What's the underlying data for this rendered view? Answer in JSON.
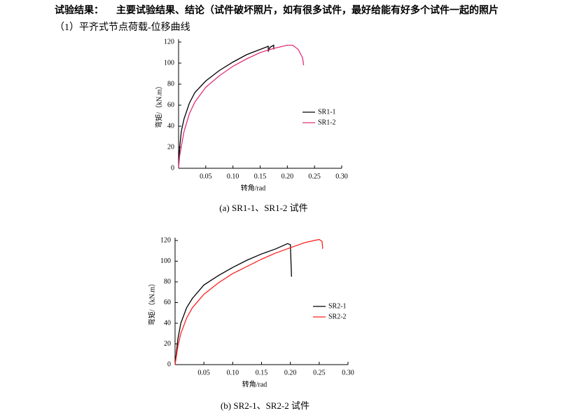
{
  "header": {
    "label": "试验结果：",
    "text": "主要试验结果、结论（试件破坏照片，如有很多试件，最好给能有好多个试件一起的照片"
  },
  "section": "（1）平齐式节点荷载-位移曲线",
  "chart_data": [
    {
      "type": "line",
      "caption": "(a) SR1-1、SR1-2 试件",
      "x_label": "转角/rad",
      "y_label": "弯矩/（kN.m）",
      "xlim": [
        0,
        0.3
      ],
      "ylim": [
        0,
        120
      ],
      "xticks": [
        0.05,
        {
          "value": 0.1,
          "label": "0.10"
        },
        0.15,
        {
          "value": 0.2,
          "label": "0.20"
        },
        0.25,
        {
          "value": 0.3,
          "label": "0.30"
        }
      ],
      "yticks": [
        0,
        20,
        40,
        60,
        80,
        100,
        120
      ],
      "series": [
        {
          "name": "SR1-1",
          "color": "#000000",
          "x": [
            0,
            0.002,
            0.005,
            0.01,
            0.02,
            0.03,
            0.05,
            0.075,
            0.1,
            0.125,
            0.15,
            0.165,
            0.165,
            0.168,
            0.175,
            0.175
          ],
          "values": [
            0,
            20,
            35,
            47,
            62,
            72,
            83,
            93,
            101,
            108,
            113,
            116,
            111,
            115,
            117,
            113
          ]
        },
        {
          "name": "SR1-2",
          "color": "#e0307a",
          "x": [
            0,
            0.002,
            0.01,
            0.02,
            0.03,
            0.05,
            0.075,
            0.1,
            0.125,
            0.15,
            0.175,
            0.2,
            0.21,
            0.22,
            0.228,
            0.23
          ],
          "values": [
            0,
            12,
            35,
            52,
            63,
            77,
            88,
            97,
            104,
            110,
            114,
            117,
            117,
            113,
            105,
            98
          ]
        }
      ]
    },
    {
      "type": "line",
      "caption": "(b) SR2-1、SR2-2 试件",
      "x_label": "转角/rad",
      "y_label": "弯矩/（kN.m）",
      "xlim": [
        0,
        0.3
      ],
      "ylim": [
        0,
        120
      ],
      "xticks": [
        0.05,
        {
          "value": 0.1,
          "label": "0.10"
        },
        0.15,
        {
          "value": 0.2,
          "label": "0.20"
        },
        0.25,
        {
          "value": 0.3,
          "label": "0.30"
        }
      ],
      "yticks": [
        0,
        20,
        40,
        60,
        80,
        100,
        120
      ],
      "series": [
        {
          "name": "SR2-1",
          "color": "#000000",
          "x": [
            0,
            0.005,
            0.01,
            0.02,
            0.03,
            0.05,
            0.075,
            0.1,
            0.125,
            0.15,
            0.175,
            0.195,
            0.2,
            0.202
          ],
          "values": [
            0,
            25,
            40,
            55,
            64,
            77,
            86,
            94,
            101,
            107,
            112,
            117,
            116,
            85
          ]
        },
        {
          "name": "SR2-2",
          "color": "#ff2020",
          "x": [
            0,
            0.005,
            0.01,
            0.02,
            0.03,
            0.05,
            0.075,
            0.1,
            0.125,
            0.15,
            0.175,
            0.2,
            0.225,
            0.25,
            0.255,
            0.256
          ],
          "values": [
            0,
            18,
            30,
            45,
            55,
            68,
            79,
            88,
            95,
            102,
            108,
            113,
            118,
            121,
            119,
            112
          ]
        }
      ]
    }
  ]
}
